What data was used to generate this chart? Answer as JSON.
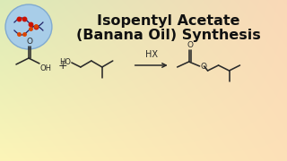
{
  "title_line1": "Isopentyl Acetate",
  "title_line2": "(Banana Oil) Synthesis",
  "title_fontsize": 11.5,
  "title_color": "#111111",
  "reaction_label": "HX",
  "mol_color": "#2a2a2a",
  "bg_tl": [
    0.86,
    0.92,
    0.72
  ],
  "bg_tr": [
    0.98,
    0.85,
    0.72
  ],
  "bg_bl": [
    0.99,
    0.96,
    0.72
  ],
  "bg_br": [
    0.99,
    0.88,
    0.72
  ]
}
